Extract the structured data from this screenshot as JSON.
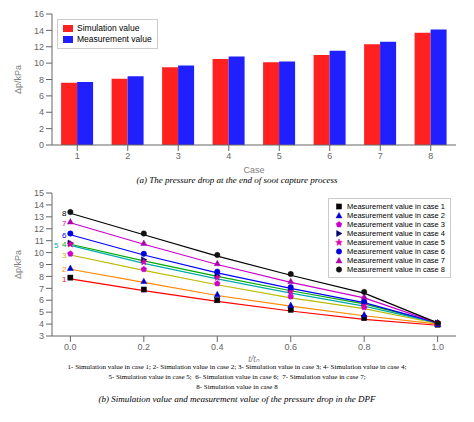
{
  "chart_data": [
    {
      "type": "bar",
      "title": "(a) The pressure drop at the end of soot capture process",
      "xlabel": "Case",
      "ylabel": "Δp/kPa",
      "categories": [
        "1",
        "2",
        "3",
        "4",
        "5",
        "6",
        "7",
        "8"
      ],
      "series": [
        {
          "name": "Simulation value",
          "color": "#FF2020",
          "values": [
            7.6,
            8.1,
            9.5,
            10.5,
            10.1,
            11.0,
            12.3,
            13.7
          ]
        },
        {
          "name": "Measurement value",
          "color": "#2020FF",
          "values": [
            7.7,
            8.4,
            9.7,
            10.8,
            10.2,
            11.5,
            12.6,
            14.1
          ]
        }
      ],
      "ylim": [
        0,
        16
      ],
      "yticks": [
        0,
        2,
        4,
        6,
        8,
        10,
        12,
        14,
        16
      ],
      "legend": "upper left",
      "grid": false
    },
    {
      "type": "line",
      "title": "(b) Simulation value and measurement value of the pressure drop in the DPF",
      "xlabel": "t/t₀",
      "ylabel": "Δp/kPa",
      "x": [
        0.0,
        0.2,
        0.4,
        0.6,
        0.8,
        1.0
      ],
      "xlim": [
        -0.05,
        1.05
      ],
      "xticks": [
        {
          "value": 0,
          "label": "0.0"
        },
        0.2,
        0.4,
        0.6,
        0.8,
        {
          "value": 1,
          "label": "1.0"
        }
      ],
      "ylim": [
        3,
        15
      ],
      "yticks": [
        3,
        4,
        5,
        6,
        7,
        8,
        9,
        10,
        11,
        12,
        13,
        14,
        15
      ],
      "legend": "upper right",
      "grid": false,
      "annotations": [
        "1- Simulation value in case 1; 2- Simulation value in case 2; 3- Simulation value in case 3; 4- Simulation value in case 4;",
        "5- Simulation value in case 5;  6- Simulation value in case 6;  7- Simulation value in case 7;",
        "8- Simulation value in case 8"
      ],
      "series": [
        {
          "label": "1",
          "type": "line",
          "color": "#FF0000",
          "values": [
            7.8,
            6.8,
            5.9,
            5.1,
            4.4,
            3.9
          ]
        },
        {
          "name": "Measurement value in case 1",
          "type": "scatter",
          "marker": "square",
          "color": "#000000",
          "values": [
            7.9,
            6.9,
            6.0,
            5.2,
            4.5,
            3.95
          ]
        },
        {
          "label": "2",
          "type": "line",
          "color": "#FF8800",
          "values": [
            8.6,
            7.5,
            6.4,
            5.5,
            4.7,
            4.0
          ]
        },
        {
          "name": "Measurement value in case 2",
          "type": "scatter",
          "marker": "triangle",
          "color": "#0000CC",
          "values": [
            8.7,
            7.6,
            6.5,
            5.6,
            4.8,
            4.0
          ]
        },
        {
          "label": "3",
          "type": "line",
          "color": "#BBBB00",
          "values": [
            9.8,
            8.5,
            7.3,
            6.2,
            5.3,
            4.05
          ]
        },
        {
          "name": "Measurement value in case 3",
          "type": "scatter",
          "marker": "pentagon",
          "color": "#CC00CC",
          "values": [
            9.9,
            8.6,
            7.4,
            6.3,
            5.4,
            4.05
          ]
        },
        {
          "label": "4",
          "type": "line",
          "color": "#00AA00",
          "values": [
            10.7,
            9.3,
            8.0,
            6.8,
            5.7,
            4.1
          ]
        },
        {
          "name": "Measurement value in case 4",
          "type": "scatter",
          "marker": "triangle-right",
          "color": "#000066",
          "values": [
            10.8,
            9.4,
            8.1,
            6.9,
            5.8,
            4.1
          ]
        },
        {
          "label": "5",
          "type": "line",
          "color": "#00AAAA",
          "values": [
            10.6,
            9.1,
            7.8,
            6.6,
            5.5,
            4.1
          ]
        },
        {
          "name": "Measurement value in case 5",
          "type": "scatter",
          "marker": "star",
          "color": "#DD00AA",
          "values": [
            10.7,
            9.2,
            7.9,
            6.7,
            5.6,
            4.1
          ]
        },
        {
          "label": "6",
          "type": "line",
          "color": "#0000FF",
          "values": [
            11.5,
            9.8,
            8.3,
            7.0,
            5.8,
            4.1
          ]
        },
        {
          "name": "Measurement value in case 6",
          "type": "scatter",
          "marker": "circle",
          "color": "#0000DD",
          "values": [
            11.6,
            9.9,
            8.4,
            7.1,
            5.9,
            4.05
          ]
        },
        {
          "label": "7",
          "type": "line",
          "color": "#CC00CC",
          "values": [
            12.5,
            10.7,
            9.0,
            7.5,
            6.2,
            4.1
          ]
        },
        {
          "name": "Measurement value in case 7",
          "type": "scatter",
          "marker": "triangle",
          "color": "#AA00AA",
          "values": [
            12.6,
            10.8,
            9.1,
            7.6,
            6.3,
            4.1
          ]
        },
        {
          "label": "8",
          "type": "line",
          "color": "#000000",
          "values": [
            13.3,
            11.5,
            9.7,
            8.1,
            6.6,
            4.1
          ]
        },
        {
          "name": "Measurement value in case 8",
          "type": "scatter",
          "marker": "circle",
          "color": "#111111",
          "values": [
            13.4,
            11.6,
            9.8,
            8.2,
            6.7,
            4.1
          ]
        }
      ]
    }
  ]
}
